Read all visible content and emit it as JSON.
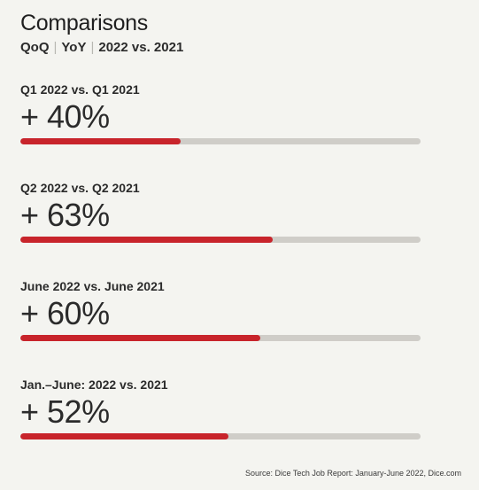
{
  "header": {
    "title": "Comparisons",
    "subtitle": [
      "QoQ",
      "YoY",
      "2022 vs. 2021"
    ]
  },
  "chart_data": {
    "type": "bar",
    "categories": [
      "Q1 2022 vs. Q1 2021",
      "Q2 2022 vs. Q2 2021",
      "June 2022 vs. June 2021",
      "Jan.–June: 2022 vs. 2021"
    ],
    "value_labels": [
      "+ 40%",
      "+ 63%",
      "+ 60%",
      "+ 52%"
    ],
    "values": [
      40,
      63,
      60,
      52
    ],
    "xlim": [
      0,
      100
    ]
  },
  "footer": {
    "source": "Source: Dice Tech Job Report: January-June 2022, Dice.com"
  },
  "colors": {
    "bar_fill": "#c8242b",
    "bar_track": "#cfcdc8",
    "background": "#f4f4f0"
  }
}
